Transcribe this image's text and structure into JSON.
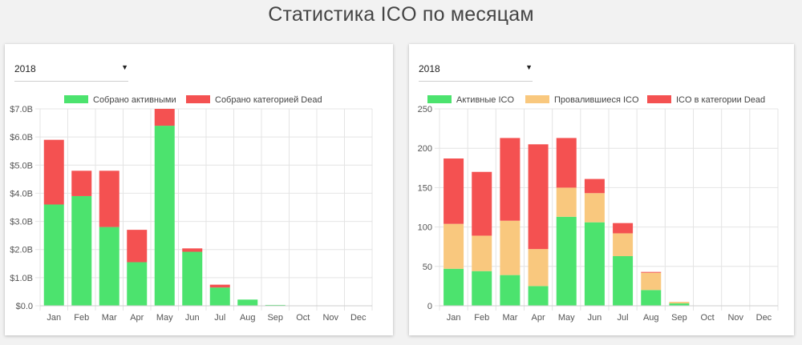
{
  "page": {
    "title": "Статистика ICO по месяцам"
  },
  "colors": {
    "active": "#4ce36e",
    "failed": "#f9c87e",
    "dead": "#f45151",
    "grid": "#e4e4e4",
    "axis_text": "#555555"
  },
  "charts": [
    {
      "selector": {
        "value": "2018",
        "arrow_icon": "caret-down-icon"
      }
    },
    {
      "selector": {
        "value": "2018",
        "arrow_icon": "caret-down-icon"
      }
    }
  ],
  "chart_data": [
    {
      "type": "bar",
      "stacked": true,
      "categories": [
        "Jan",
        "Feb",
        "Mar",
        "Apr",
        "May",
        "Jun",
        "Jul",
        "Aug",
        "Sep",
        "Oct",
        "Nov",
        "Dec"
      ],
      "series": [
        {
          "name": "Собрано активными",
          "color_key": "active",
          "values": [
            3.6,
            3.9,
            2.8,
            1.55,
            6.4,
            1.92,
            0.65,
            0.22,
            0.03,
            0,
            0,
            0
          ]
        },
        {
          "name": "Собрано категорией Dead",
          "color_key": "dead",
          "values": [
            2.3,
            0.9,
            2.0,
            1.15,
            0.6,
            0.12,
            0.1,
            0,
            0,
            0,
            0,
            0
          ]
        }
      ],
      "ylim": [
        0,
        7
      ],
      "yticks": [
        0,
        1,
        2,
        3,
        4,
        5,
        6,
        7
      ],
      "ytick_labels": [
        "$0.0",
        "$1.0B",
        "$2.0B",
        "$3.0B",
        "$4.0B",
        "$5.0B",
        "$6.0B",
        "$7.0B"
      ],
      "grid": true,
      "legend": "top-center",
      "title": "",
      "xlabel": "",
      "ylabel": ""
    },
    {
      "type": "bar",
      "stacked": true,
      "categories": [
        "Jan",
        "Feb",
        "Mar",
        "Apr",
        "May",
        "Jun",
        "Jul",
        "Aug",
        "Sep",
        "Oct",
        "Nov",
        "Dec"
      ],
      "series": [
        {
          "name": "Активные ICO",
          "color_key": "active",
          "values": [
            47,
            44,
            39,
            25,
            113,
            106,
            63,
            20,
            3,
            0,
            0,
            0
          ]
        },
        {
          "name": "Провалившиеся ICO",
          "color_key": "failed",
          "values": [
            57,
            45,
            69,
            47,
            37,
            37,
            29,
            22,
            2,
            0,
            0,
            0
          ]
        },
        {
          "name": "ICO в категории Dead",
          "color_key": "dead",
          "values": [
            83,
            81,
            105,
            133,
            63,
            18,
            13,
            1,
            0,
            0,
            0,
            0
          ]
        }
      ],
      "ylim": [
        0,
        250
      ],
      "yticks": [
        0,
        50,
        100,
        150,
        200,
        250
      ],
      "ytick_labels": [
        "0",
        "50",
        "100",
        "150",
        "200",
        "250"
      ],
      "grid": true,
      "legend": "top-center",
      "title": "",
      "xlabel": "",
      "ylabel": ""
    }
  ]
}
